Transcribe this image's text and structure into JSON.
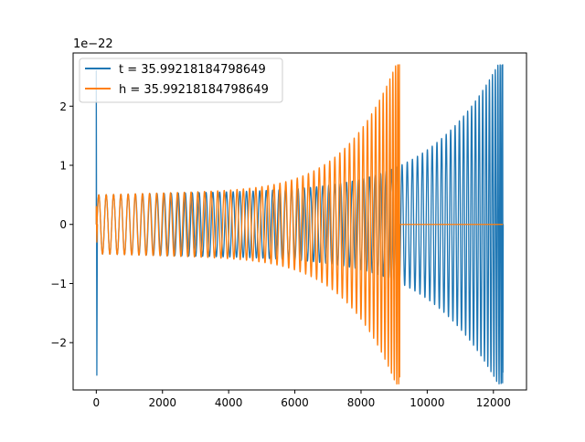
{
  "chart_data": {
    "type": "line",
    "title": "",
    "xlabel": "",
    "ylabel": "",
    "xlim": [
      -700,
      13000
    ],
    "ylim": [
      -2.8,
      2.9
    ],
    "y_scale_label": "1e−22",
    "x_ticks": [
      0,
      2000,
      4000,
      6000,
      8000,
      10000,
      12000
    ],
    "x_tick_labels": [
      "0",
      "2000",
      "4000",
      "6000",
      "8000",
      "10000",
      "12000"
    ],
    "y_ticks": [
      -2,
      -1,
      0,
      1,
      2
    ],
    "y_tick_labels": [
      "−2",
      "−1",
      "0",
      "1",
      "2"
    ],
    "grid": false,
    "legend_position": "top-left",
    "series": [
      {
        "name": "t = 35.99218184798649",
        "color": "#1f77b4",
        "description": "chirp signal, x from 0 to 12290, amplitude about 0.5 early rising to 2.7 at merger near x=12280",
        "x_start": 0,
        "x_end": 12290,
        "amp_start": 0.5,
        "amp_peak": 2.7,
        "amp_trough": -2.5,
        "merger_x": 12280,
        "spike_at_zero": [
          2.6,
          -2.55
        ]
      },
      {
        "name": "h = 35.99218184798649",
        "color": "#ff7f0e",
        "description": "chirp signal, x from 0 to 9170, amplitude about 0.5 early rising to 2.7 at merger near x=9160, zero afterwards to 12290",
        "x_start": 0,
        "x_end": 12290,
        "amp_start": 0.5,
        "amp_peak": 2.7,
        "amp_trough": -2.58,
        "merger_x": 9160,
        "spike_at_zero": [
          0.3,
          -0.3
        ]
      }
    ]
  }
}
